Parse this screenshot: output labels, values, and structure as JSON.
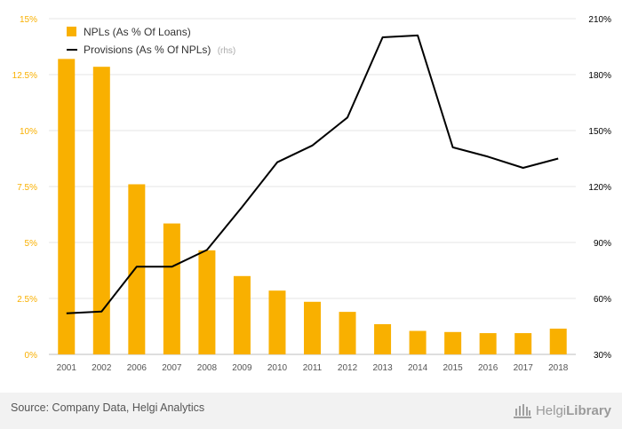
{
  "chart_data": {
    "type": "bar",
    "categories": [
      "2001",
      "2002",
      "2006",
      "2007",
      "2008",
      "2009",
      "2010",
      "2011",
      "2012",
      "2013",
      "2014",
      "2015",
      "2016",
      "2017",
      "2018"
    ],
    "series": [
      {
        "name": "NPLs (As % Of Loans)",
        "type": "bar",
        "axis": "left",
        "color": "#f9b000",
        "values": [
          13.2,
          12.85,
          7.6,
          5.85,
          4.65,
          3.5,
          2.85,
          2.35,
          1.9,
          1.35,
          1.05,
          1.0,
          0.95,
          0.95,
          1.15
        ]
      },
      {
        "name": "Provisions (As % Of NPLs)",
        "type": "line",
        "axis": "right",
        "color": "#000000",
        "values": [
          52,
          53,
          77,
          77,
          86,
          109,
          133,
          142,
          157,
          200,
          201,
          141,
          136,
          130,
          135
        ]
      }
    ],
    "legend": {
      "position": "top-left",
      "items": [
        {
          "label": "NPLs (As % Of Loans)",
          "suffix": ""
        },
        {
          "label": "Provisions (As % Of NPLs)",
          "suffix": "(rhs)"
        }
      ]
    },
    "y_left": {
      "ticks": [
        "0%",
        "2.5%",
        "5%",
        "7.5%",
        "10%",
        "12.5%",
        "15%"
      ],
      "min": 0,
      "max": 15,
      "color": "#f9b000"
    },
    "y_right": {
      "ticks": [
        "30%",
        "60%",
        "90%",
        "120%",
        "150%",
        "180%",
        "210%"
      ],
      "min": 30,
      "max": 210,
      "color": "#000000"
    },
    "grid": true
  },
  "footer": {
    "source": "Source: Company Data, Helgi Analytics",
    "brand_light": "Helgi",
    "brand_bold": "Library"
  }
}
